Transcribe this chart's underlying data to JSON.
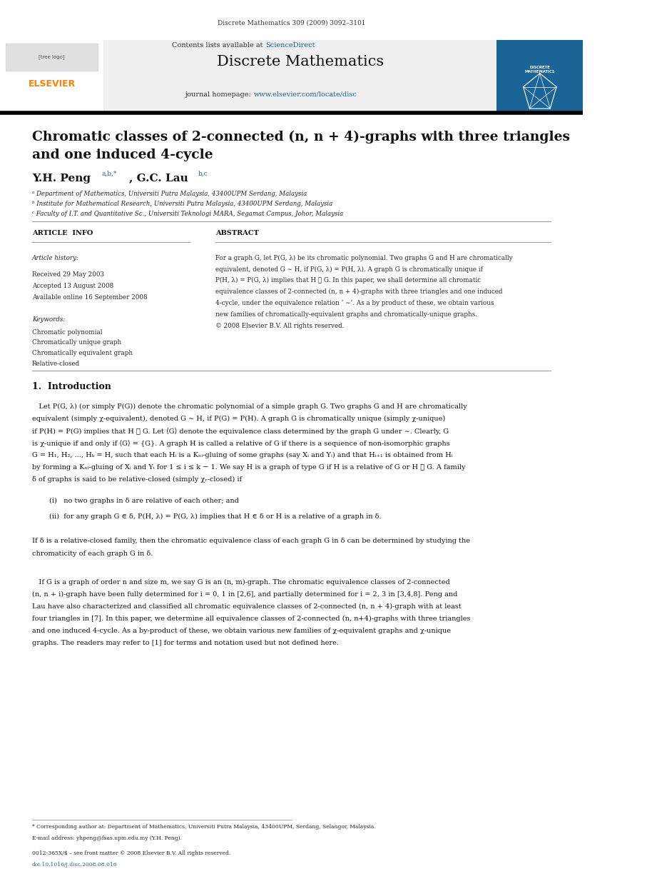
{
  "page_width": 9.07,
  "page_height": 12.38,
  "bg_color": "#ffffff",
  "header_journal": "Discrete Mathematics 309 (2009) 3092–3101",
  "header_bg": "#f0f0f0",
  "journal_title": "Discrete Mathematics",
  "journal_homepage": "journal homepage: www.elsevier.com/locate/disc",
  "elsevier_color": "#FF8000",
  "sciencedirect_color": "#1a6496",
  "blue_cover_color": "#1a6496",
  "paper_title_line1": "Chromatic classes of 2-connected (n, n + 4)-graphs with three triangles",
  "paper_title_line2": "and one induced 4-cycle",
  "authors_super": "a,b,*",
  "authors_super2": "b,c",
  "affil_a": "ᵃ Department of Mathematics, Universiti Putra Malaysia, 43400UPM Serdang, Malaysia",
  "affil_b": "ᵇ Institute for Mathematical Research, Universiti Putra Malaysia, 43400UPM Serdang, Malaysia",
  "affil_c": "ᶜ Faculty of I.T. and Quantitative Sc., Universiti Teknologi MARA, Segamat Campus, Johor, Malaysia",
  "article_info_title": "ARTICLE  INFO",
  "abstract_title": "ABSTRACT",
  "article_history_label": "Article history:",
  "received": "Received 29 May 2003",
  "accepted": "Accepted 13 August 2008",
  "available": "Available online 16 September 2008",
  "keywords_label": "Keywords:",
  "kw1": "Chromatic polynomial",
  "kw2": "Chromatically unique graph",
  "kw3": "Chromatically equivalent graph",
  "kw4": "Relative-closed",
  "intro_title": "1.  Introduction",
  "intro_bullet1": "(i)   no two graphs in δ are relative of each other; and",
  "intro_bullet2": "(ii)  for any graph G ∈ δ, P(H, λ) = P(G, λ) implies that H ∈ δ or H is a relative of a graph in δ.",
  "footnote_star": "* Corresponding author at: Department of Mathematics, Universiti Putra Malaysia, 43400UPM, Serdang, Selangor, Malaysia.",
  "footnote_email": "E-mail address: yhpeng@fsas.upm.edu.my (Y.H. Peng).",
  "footnote_issn": "0012-365X/$ – see front matter © 2008 Elsevier B.V. All rights reserved.",
  "footnote_doi": "doi:10.1016/j.disc.2008.08.016"
}
